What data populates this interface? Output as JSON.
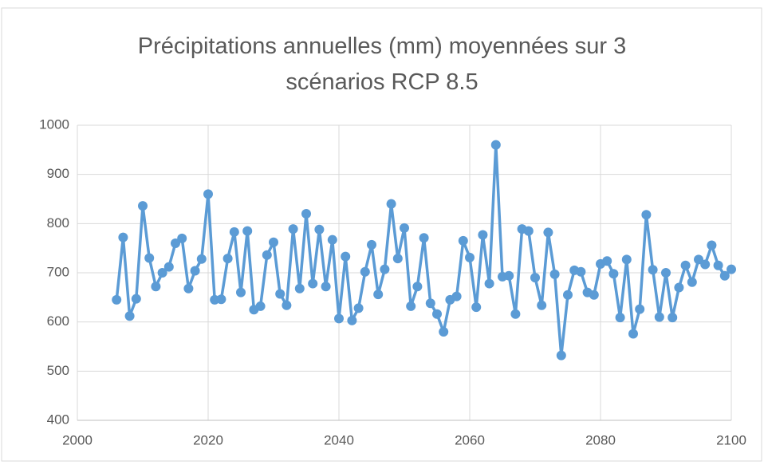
{
  "chart_data": {
    "type": "line",
    "title": "Précipitations annuelles (mm) moyennées sur 3 scénarios RCP 8.5",
    "x": [
      2006,
      2007,
      2008,
      2009,
      2010,
      2011,
      2012,
      2013,
      2014,
      2015,
      2016,
      2017,
      2018,
      2019,
      2020,
      2021,
      2022,
      2023,
      2024,
      2025,
      2026,
      2027,
      2028,
      2029,
      2030,
      2031,
      2032,
      2033,
      2034,
      2035,
      2036,
      2037,
      2038,
      2039,
      2040,
      2041,
      2042,
      2043,
      2044,
      2045,
      2046,
      2047,
      2048,
      2049,
      2050,
      2051,
      2052,
      2053,
      2054,
      2055,
      2056,
      2057,
      2058,
      2059,
      2060,
      2061,
      2062,
      2063,
      2064,
      2065,
      2066,
      2067,
      2068,
      2069,
      2070,
      2071,
      2072,
      2073,
      2074,
      2075,
      2076,
      2077,
      2078,
      2079,
      2080,
      2081,
      2082,
      2083,
      2084,
      2085,
      2086,
      2087,
      2088,
      2089,
      2090,
      2091,
      2092,
      2093,
      2094,
      2095,
      2096,
      2097,
      2098,
      2099,
      2100
    ],
    "values": [
      645,
      772,
      612,
      647,
      836,
      730,
      672,
      700,
      712,
      760,
      770,
      668,
      704,
      728,
      860,
      645,
      646,
      729,
      783,
      660,
      785,
      625,
      632,
      736,
      762,
      657,
      634,
      789,
      668,
      820,
      678,
      788,
      672,
      767,
      607,
      733,
      603,
      628,
      702,
      757,
      656,
      707,
      840,
      729,
      791,
      632,
      672,
      771,
      638,
      616,
      580,
      645,
      652,
      765,
      731,
      630,
      777,
      678,
      960,
      692,
      694,
      616,
      789,
      785,
      690,
      634,
      782,
      697,
      532,
      655,
      705,
      702,
      660,
      655,
      718,
      724,
      698,
      609,
      727,
      576,
      626,
      818,
      706,
      610,
      700,
      609,
      670,
      715,
      681,
      727,
      717,
      756,
      715,
      694,
      707
    ],
    "color": "#5b9bd5",
    "xlim": [
      2000,
      2100
    ],
    "xticks": [
      2000,
      2020,
      2040,
      2060,
      2080,
      2100
    ],
    "ylim": [
      400,
      1000
    ],
    "yticks": [
      400,
      500,
      600,
      700,
      800,
      900,
      1000
    ],
    "grid": true
  }
}
